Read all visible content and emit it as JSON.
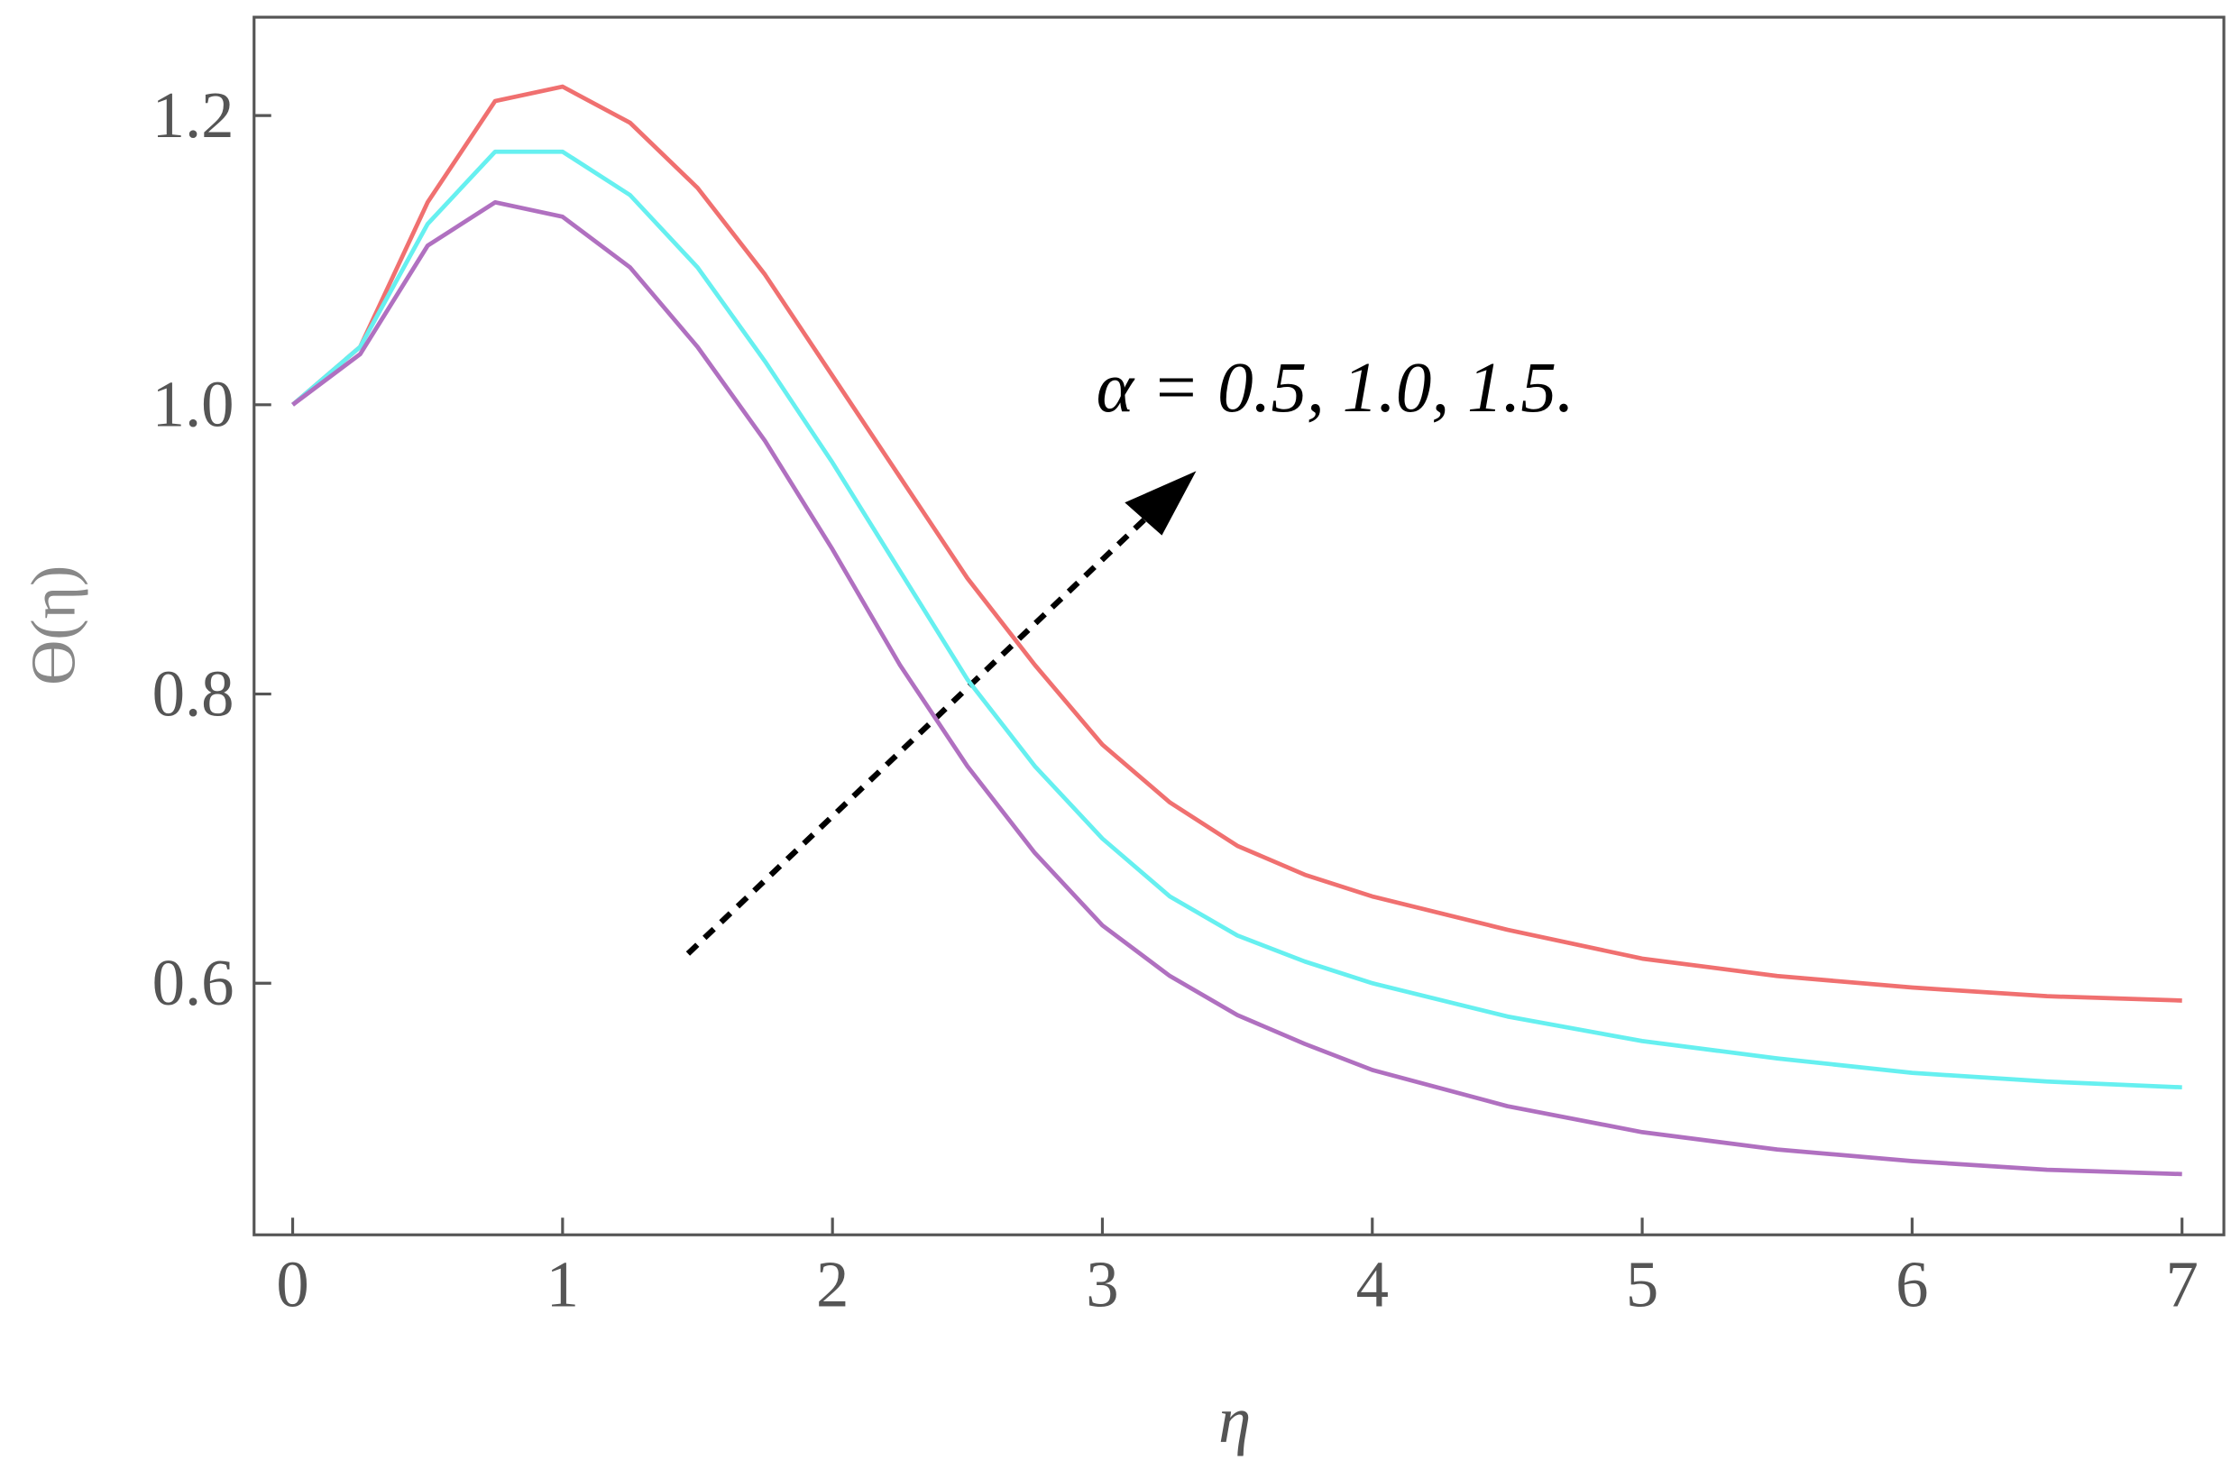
{
  "chart_data": {
    "type": "line",
    "x_label": "η",
    "y_label": "ϴ(η)",
    "annotation": "α = 0.5, 1.0, 1.5.",
    "x": [
      0,
      0.25,
      0.5,
      0.75,
      1.0,
      1.25,
      1.5,
      1.75,
      2.0,
      2.25,
      2.5,
      2.75,
      3.0,
      3.25,
      3.5,
      3.75,
      4.0,
      4.5,
      5.0,
      5.5,
      6.0,
      6.5,
      7.0
    ],
    "series": [
      {
        "color": "#f07070",
        "values": [
          1.0,
          1.04,
          1.14,
          1.21,
          1.22,
          1.195,
          1.15,
          1.09,
          1.02,
          0.95,
          0.88,
          0.82,
          0.765,
          0.725,
          0.695,
          0.675,
          0.66,
          0.637,
          0.617,
          0.605,
          0.597,
          0.591,
          0.588
        ]
      },
      {
        "color": "#66f0f0",
        "values": [
          1.0,
          1.04,
          1.125,
          1.175,
          1.175,
          1.145,
          1.095,
          1.03,
          0.96,
          0.885,
          0.81,
          0.75,
          0.7,
          0.66,
          0.633,
          0.615,
          0.6,
          0.577,
          0.56,
          0.548,
          0.538,
          0.532,
          0.528
        ]
      },
      {
        "color": "#b070c0",
        "values": [
          1.0,
          1.035,
          1.11,
          1.14,
          1.13,
          1.095,
          1.04,
          0.975,
          0.9,
          0.82,
          0.75,
          0.69,
          0.64,
          0.605,
          0.578,
          0.558,
          0.54,
          0.515,
          0.497,
          0.485,
          0.477,
          0.471,
          0.468
        ]
      }
    ],
    "xlim": [
      -0.143,
      7.155
    ],
    "ylim": [
      0.426,
      1.268
    ],
    "xticks": [
      0,
      1,
      2,
      3,
      4,
      5,
      6,
      7
    ],
    "yticks": [
      0.6,
      0.8,
      {
        "value": 1,
        "label": "1.0"
      },
      1.2
    ]
  }
}
